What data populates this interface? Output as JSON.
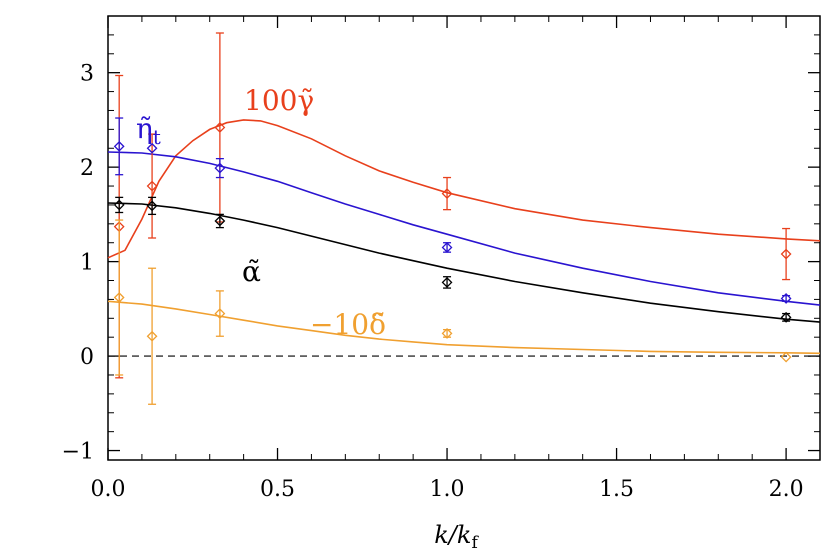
{
  "chart_data": {
    "type": "scatter",
    "xlabel": "k/k_f",
    "xlabel_main": "k/k",
    "xlabel_sub": "f",
    "ylabel": "",
    "xlim": [
      0,
      2.1
    ],
    "ylim": [
      -1.1,
      3.6
    ],
    "x_ticks": [
      0.0,
      0.5,
      1.0,
      1.5,
      2.0
    ],
    "x_tick_labels": [
      "0.0",
      "0.5",
      "1.0",
      "1.5",
      "2.0"
    ],
    "y_ticks": [
      -1,
      0,
      1,
      2,
      3
    ],
    "y_tick_labels": [
      "−1",
      "0",
      "1",
      "2",
      "3"
    ],
    "zero_line": "dashed",
    "grid": false,
    "series": [
      {
        "key": "gamma",
        "label": "100γ̃",
        "color": "#e8401c",
        "points": [
          {
            "x": 0.033,
            "y": 1.37,
            "err": 1.6
          },
          {
            "x": 0.13,
            "y": 1.8,
            "err": 0.55
          },
          {
            "x": 0.33,
            "y": 2.42,
            "err": 1.0
          },
          {
            "x": 1.0,
            "y": 1.72,
            "err": 0.17
          },
          {
            "x": 2.0,
            "y": 1.08,
            "err": 0.27
          }
        ],
        "curve": [
          [
            0.0,
            1.04
          ],
          [
            0.05,
            1.12
          ],
          [
            0.1,
            1.45
          ],
          [
            0.15,
            1.85
          ],
          [
            0.2,
            2.12
          ],
          [
            0.25,
            2.28
          ],
          [
            0.3,
            2.4
          ],
          [
            0.35,
            2.47
          ],
          [
            0.4,
            2.5
          ],
          [
            0.45,
            2.49
          ],
          [
            0.5,
            2.44
          ],
          [
            0.6,
            2.3
          ],
          [
            0.7,
            2.12
          ],
          [
            0.8,
            1.96
          ],
          [
            0.9,
            1.84
          ],
          [
            1.0,
            1.73
          ],
          [
            1.2,
            1.56
          ],
          [
            1.4,
            1.44
          ],
          [
            1.6,
            1.36
          ],
          [
            1.8,
            1.29
          ],
          [
            2.0,
            1.24
          ],
          [
            2.1,
            1.22
          ]
        ]
      },
      {
        "key": "eta",
        "label": "η̃",
        "label_sub": "t",
        "color": "#2a14d0",
        "points": [
          {
            "x": 0.033,
            "y": 2.22,
            "err": 0.3
          },
          {
            "x": 0.13,
            "y": 2.2,
            "err": 0.0
          },
          {
            "x": 0.33,
            "y": 1.99,
            "err": 0.1
          },
          {
            "x": 1.0,
            "y": 1.15,
            "err": 0.05
          },
          {
            "x": 2.0,
            "y": 0.61,
            "err": 0.03
          }
        ],
        "curve": [
          [
            0.0,
            2.16
          ],
          [
            0.1,
            2.15
          ],
          [
            0.2,
            2.11
          ],
          [
            0.3,
            2.04
          ],
          [
            0.4,
            1.95
          ],
          [
            0.5,
            1.85
          ],
          [
            0.6,
            1.73
          ],
          [
            0.7,
            1.61
          ],
          [
            0.8,
            1.5
          ],
          [
            0.9,
            1.39
          ],
          [
            1.0,
            1.29
          ],
          [
            1.2,
            1.09
          ],
          [
            1.4,
            0.93
          ],
          [
            1.6,
            0.79
          ],
          [
            1.8,
            0.67
          ],
          [
            2.0,
            0.58
          ],
          [
            2.1,
            0.54
          ]
        ]
      },
      {
        "key": "alpha",
        "label": "α̃",
        "color": "#000000",
        "points": [
          {
            "x": 0.033,
            "y": 1.6,
            "err": 0.08
          },
          {
            "x": 0.13,
            "y": 1.59,
            "err": 0.09
          },
          {
            "x": 0.33,
            "y": 1.43,
            "err": 0.07
          },
          {
            "x": 1.0,
            "y": 0.78,
            "err": 0.06
          },
          {
            "x": 2.0,
            "y": 0.41,
            "err": 0.04
          }
        ],
        "curve": [
          [
            0.0,
            1.62
          ],
          [
            0.1,
            1.61
          ],
          [
            0.2,
            1.57
          ],
          [
            0.3,
            1.51
          ],
          [
            0.4,
            1.44
          ],
          [
            0.5,
            1.36
          ],
          [
            0.6,
            1.27
          ],
          [
            0.7,
            1.18
          ],
          [
            0.8,
            1.09
          ],
          [
            0.9,
            1.01
          ],
          [
            1.0,
            0.93
          ],
          [
            1.2,
            0.79
          ],
          [
            1.4,
            0.67
          ],
          [
            1.6,
            0.56
          ],
          [
            1.8,
            0.47
          ],
          [
            2.0,
            0.39
          ],
          [
            2.1,
            0.36
          ]
        ]
      },
      {
        "key": "delta",
        "label": "−10δ̃",
        "color": "#f0a030",
        "points": [
          {
            "x": 0.033,
            "y": 0.62,
            "err": 0.82
          },
          {
            "x": 0.13,
            "y": 0.21,
            "err": 0.72
          },
          {
            "x": 0.33,
            "y": 0.45,
            "err": 0.24
          },
          {
            "x": 1.0,
            "y": 0.24,
            "err": 0.04
          },
          {
            "x": 2.0,
            "y": -0.01,
            "err": 0.0
          }
        ],
        "curve": [
          [
            0.0,
            0.58
          ],
          [
            0.1,
            0.55
          ],
          [
            0.2,
            0.5
          ],
          [
            0.3,
            0.44
          ],
          [
            0.4,
            0.38
          ],
          [
            0.5,
            0.32
          ],
          [
            0.6,
            0.27
          ],
          [
            0.7,
            0.22
          ],
          [
            0.8,
            0.18
          ],
          [
            0.9,
            0.15
          ],
          [
            1.0,
            0.12
          ],
          [
            1.2,
            0.09
          ],
          [
            1.4,
            0.07
          ],
          [
            1.6,
            0.05
          ],
          [
            1.8,
            0.04
          ],
          [
            2.0,
            0.035
          ],
          [
            2.1,
            0.03
          ]
        ]
      }
    ]
  }
}
